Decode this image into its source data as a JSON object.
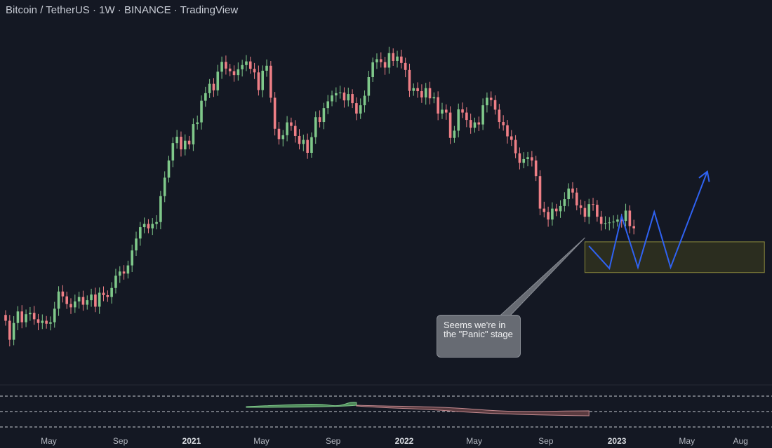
{
  "header": {
    "title": "Bitcoin / TetherUS · 1W · BINANCE · TradingView"
  },
  "annotation": {
    "text": "Seems we're in the \"Panic\" stage"
  },
  "colors": {
    "background": "#141823",
    "up": "#7fc88a",
    "down": "#ef7f86",
    "projection": "#2f62f2",
    "zone_fill": "#2b2d1f",
    "zone_border": "#8c8a3c",
    "callout": "#676b73"
  },
  "chart_data": {
    "type": "candlestick",
    "symbol": "BTCUSDT",
    "exchange": "BINANCE",
    "interval": "1W",
    "y_scale": "log",
    "xlim": [
      "2020-02-17",
      "2023-09-18"
    ],
    "ylim": [
      4500,
      80000
    ],
    "x_tick_labels": [
      {
        "label": "May",
        "date": "2020-05-01",
        "bold": false
      },
      {
        "label": "Sep",
        "date": "2020-09-01",
        "bold": false
      },
      {
        "label": "2021",
        "date": "2021-01-01",
        "bold": true
      },
      {
        "label": "May",
        "date": "2021-05-01",
        "bold": false
      },
      {
        "label": "Sep",
        "date": "2021-09-01",
        "bold": false
      },
      {
        "label": "2022",
        "date": "2022-01-01",
        "bold": true
      },
      {
        "label": "May",
        "date": "2022-05-01",
        "bold": false
      },
      {
        "label": "Sep",
        "date": "2022-09-01",
        "bold": false
      },
      {
        "label": "2023",
        "date": "2023-01-01",
        "bold": true
      },
      {
        "label": "May",
        "date": "2023-05-01",
        "bold": false
      },
      {
        "label": "Aug",
        "date": "2023-08-01",
        "bold": false
      }
    ],
    "weekly_closes": [
      9300,
      8100,
      9150,
      9950,
      9200,
      9750,
      9850,
      9400,
      9150,
      9300,
      9100,
      9200,
      10150,
      11500,
      11100,
      10500,
      10250,
      10700,
      11050,
      10450,
      10800,
      11250,
      10300,
      11400,
      11200,
      11050,
      11800,
      12900,
      13300,
      13100,
      13900,
      15500,
      16900,
      18350,
      18800,
      18200,
      18800,
      19050,
      23000,
      26300,
      29800,
      33800,
      35400,
      32300,
      34400,
      33500,
      38800,
      39300,
      46000,
      48600,
      52000,
      49600,
      56800,
      61000,
      58100,
      57000,
      55400,
      57800,
      59600,
      61200,
      58000,
      56500,
      49700,
      57200,
      59300,
      47000,
      37500,
      34800,
      35800,
      39300,
      38300,
      35600,
      33600,
      34600,
      31500,
      35300,
      40800,
      39400,
      43600,
      45800,
      47800,
      48600,
      48800,
      46100,
      48300,
      45200,
      41900,
      44500,
      47700,
      54600,
      60800,
      62200,
      60900,
      58500,
      65000,
      61400,
      63400,
      60500,
      57500,
      49400,
      50400,
      49300,
      47100,
      50400,
      46800,
      47200,
      41900,
      43100,
      42200,
      35100,
      37000,
      43200,
      42200,
      40000,
      37800,
      39300,
      38700,
      44500,
      47000,
      46200,
      43100,
      39400,
      38500,
      35500,
      34600,
      31400,
      29300,
      30100,
      30500,
      29800,
      26600,
      21000,
      20500,
      19400,
      21000,
      20600,
      21400,
      22500,
      24300,
      23600,
      21500,
      21100,
      19800,
      21700,
      21600,
      19800,
      18800,
      18900,
      19000,
      19100,
      19400,
      19200,
      20700,
      18500,
      18200
    ],
    "projection_path": [
      {
        "date": "2022-11-14",
        "price": 16000
      },
      {
        "date": "2022-12-19",
        "price": 13600
      },
      {
        "date": "2023-01-09",
        "price": 19900
      },
      {
        "date": "2023-02-06",
        "price": 13700
      },
      {
        "date": "2023-03-06",
        "price": 20500
      },
      {
        "date": "2023-04-03",
        "price": 13700
      },
      {
        "date": "2023-06-05",
        "price": 27500
      }
    ],
    "support_zone": {
      "from": "2022-11-07",
      "to": "2023-09-11",
      "low": 13200,
      "high": 16500
    }
  }
}
